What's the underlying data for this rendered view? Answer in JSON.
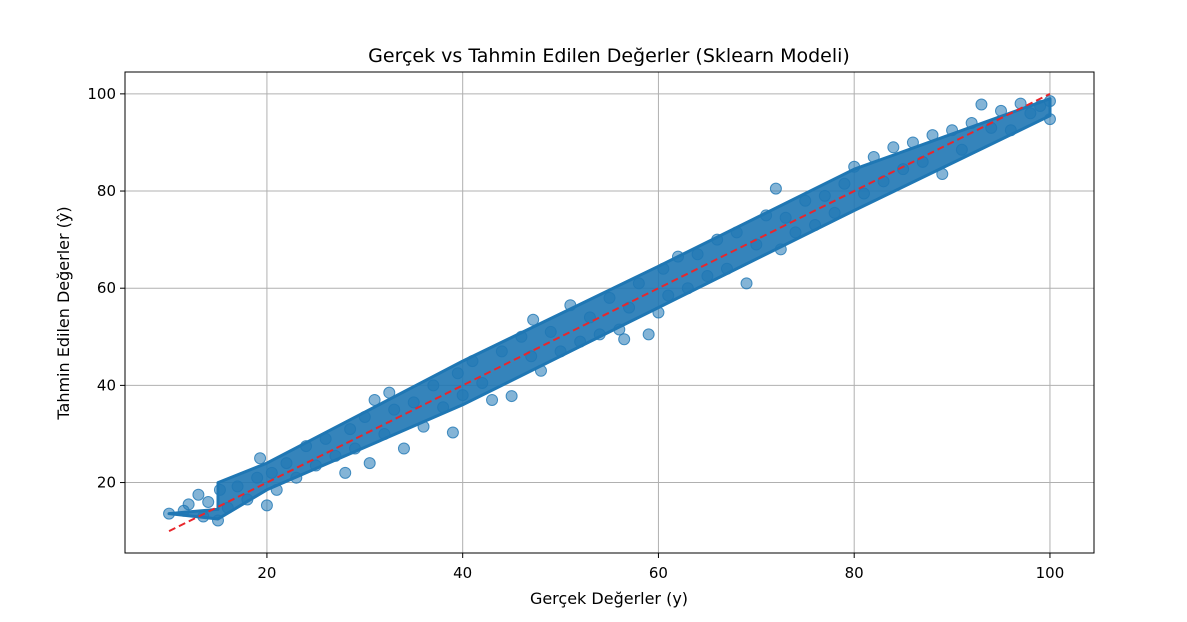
{
  "chart_data": {
    "type": "scatter",
    "title": "Gerçek vs Tahmin Edilen Değerler (Sklearn Modeli)",
    "xlabel": "Gerçek Değerler (y)",
    "ylabel": "Tahmin Edilen Değerler (ŷ)",
    "xlim": [
      5.5,
      104.5
    ],
    "ylim": [
      5.5,
      104.5
    ],
    "xticks": [
      20,
      40,
      60,
      80,
      100
    ],
    "yticks": [
      20,
      40,
      60,
      80,
      100
    ],
    "grid": true,
    "colors": {
      "points": "#1f77b4",
      "reference": "#e8262c"
    },
    "series": [
      {
        "points": [
          [
            10.0,
            13.6
          ],
          [
            11.5,
            14.2
          ],
          [
            12.0,
            15.5
          ],
          [
            13.0,
            17.5
          ],
          [
            13.5,
            13.0
          ],
          [
            14.0,
            16.0
          ],
          [
            15.0,
            12.2
          ],
          [
            15.2,
            18.5
          ],
          [
            16.0,
            14.8
          ],
          [
            17.0,
            19.2
          ],
          [
            18.0,
            16.5
          ],
          [
            19.0,
            21.0
          ],
          [
            19.3,
            25.0
          ],
          [
            20.0,
            15.3
          ],
          [
            20.5,
            22.0
          ],
          [
            21.0,
            18.5
          ],
          [
            22.0,
            24.0
          ],
          [
            23.0,
            21.0
          ],
          [
            24.0,
            27.5
          ],
          [
            25.0,
            23.5
          ],
          [
            26.0,
            29.0
          ],
          [
            27.0,
            25.5
          ],
          [
            28.0,
            22.0
          ],
          [
            28.5,
            31.0
          ],
          [
            29.0,
            27.0
          ],
          [
            30.0,
            33.5
          ],
          [
            30.5,
            24.0
          ],
          [
            31.0,
            37.0
          ],
          [
            32.0,
            30.0
          ],
          [
            32.5,
            38.5
          ],
          [
            33.0,
            35.0
          ],
          [
            34.0,
            27.0
          ],
          [
            35.0,
            36.5
          ],
          [
            36.0,
            31.5
          ],
          [
            37.0,
            40.0
          ],
          [
            38.0,
            35.5
          ],
          [
            39.0,
            30.3
          ],
          [
            39.5,
            42.5
          ],
          [
            40.0,
            38.0
          ],
          [
            41.0,
            45.0
          ],
          [
            42.0,
            40.5
          ],
          [
            43.0,
            37.0
          ],
          [
            44.0,
            47.0
          ],
          [
            45.0,
            37.8
          ],
          [
            46.0,
            50.0
          ],
          [
            47.0,
            46.0
          ],
          [
            47.2,
            53.5
          ],
          [
            48.0,
            43.0
          ],
          [
            49.0,
            51.0
          ],
          [
            50.0,
            47.0
          ],
          [
            51.0,
            56.5
          ],
          [
            52.0,
            49.0
          ],
          [
            53.0,
            54.0
          ],
          [
            54.0,
            50.5
          ],
          [
            55.0,
            58.0
          ],
          [
            56.0,
            51.5
          ],
          [
            56.5,
            49.5
          ],
          [
            57.0,
            56.0
          ],
          [
            58.0,
            61.0
          ],
          [
            59.0,
            50.5
          ],
          [
            60.0,
            55.0
          ],
          [
            60.5,
            64.0
          ],
          [
            61.0,
            58.5
          ],
          [
            62.0,
            66.5
          ],
          [
            63.0,
            60.0
          ],
          [
            64.0,
            67.0
          ],
          [
            65.0,
            62.5
          ],
          [
            66.0,
            70.0
          ],
          [
            67.0,
            64.0
          ],
          [
            68.0,
            71.5
          ],
          [
            69.0,
            61.0
          ],
          [
            70.0,
            69.0
          ],
          [
            71.0,
            75.0
          ],
          [
            72.0,
            80.5
          ],
          [
            72.5,
            68.0
          ],
          [
            73.0,
            74.5
          ],
          [
            74.0,
            71.5
          ],
          [
            75.0,
            78.0
          ],
          [
            76.0,
            73.0
          ],
          [
            77.0,
            79.0
          ],
          [
            78.0,
            75.5
          ],
          [
            79.0,
            81.5
          ],
          [
            80.0,
            85.0
          ],
          [
            81.0,
            79.5
          ],
          [
            82.0,
            87.0
          ],
          [
            83.0,
            82.0
          ],
          [
            84.0,
            89.0
          ],
          [
            85.0,
            84.5
          ],
          [
            86.0,
            90.0
          ],
          [
            87.0,
            86.0
          ],
          [
            88.0,
            91.5
          ],
          [
            89.0,
            83.5
          ],
          [
            90.0,
            92.5
          ],
          [
            91.0,
            88.5
          ],
          [
            92.0,
            94.0
          ],
          [
            93.0,
            97.8
          ],
          [
            94.0,
            93.0
          ],
          [
            95.0,
            96.5
          ],
          [
            96.0,
            92.5
          ],
          [
            97.0,
            98.0
          ],
          [
            98.0,
            96.0
          ],
          [
            99.0,
            97.5
          ],
          [
            100.0,
            98.5
          ],
          [
            100.0,
            94.8
          ]
        ]
      }
    ],
    "reference_line": {
      "x": [
        10,
        100
      ],
      "y": [
        10,
        100
      ]
    }
  }
}
